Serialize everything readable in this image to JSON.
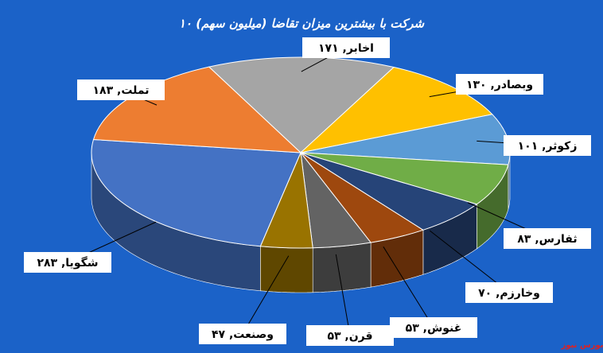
{
  "chart_data": {
    "type": "pie3d",
    "title": "۱۰ شرکت با بیشترین میزان تقاضا (میلیون سهم)",
    "values": [
      171,
      130,
      101,
      83,
      70,
      53,
      53,
      47,
      283,
      183
    ],
    "value_labels": [
      "اخابر, ۱۷۱",
      "وبصادر, ۱۳۰",
      "زکوثر, ۱۰۱",
      "ثفارس, ۸۳",
      "وخارزم, ۷۰",
      "غنوش, ۵۳",
      "قرن, ۵۳",
      "وصنعت, ۴۷",
      "شگویا, ۲۸۳",
      "تملت, ۱۸۳"
    ],
    "colors": [
      "#a5a5a5",
      "#ffc000",
      "#5b9bd5",
      "#70ad47",
      "#264478",
      "#9e480e",
      "#636363",
      "#997300",
      "#4472c4",
      "#ed7d31"
    ],
    "watermark": "بورس نیوز"
  }
}
